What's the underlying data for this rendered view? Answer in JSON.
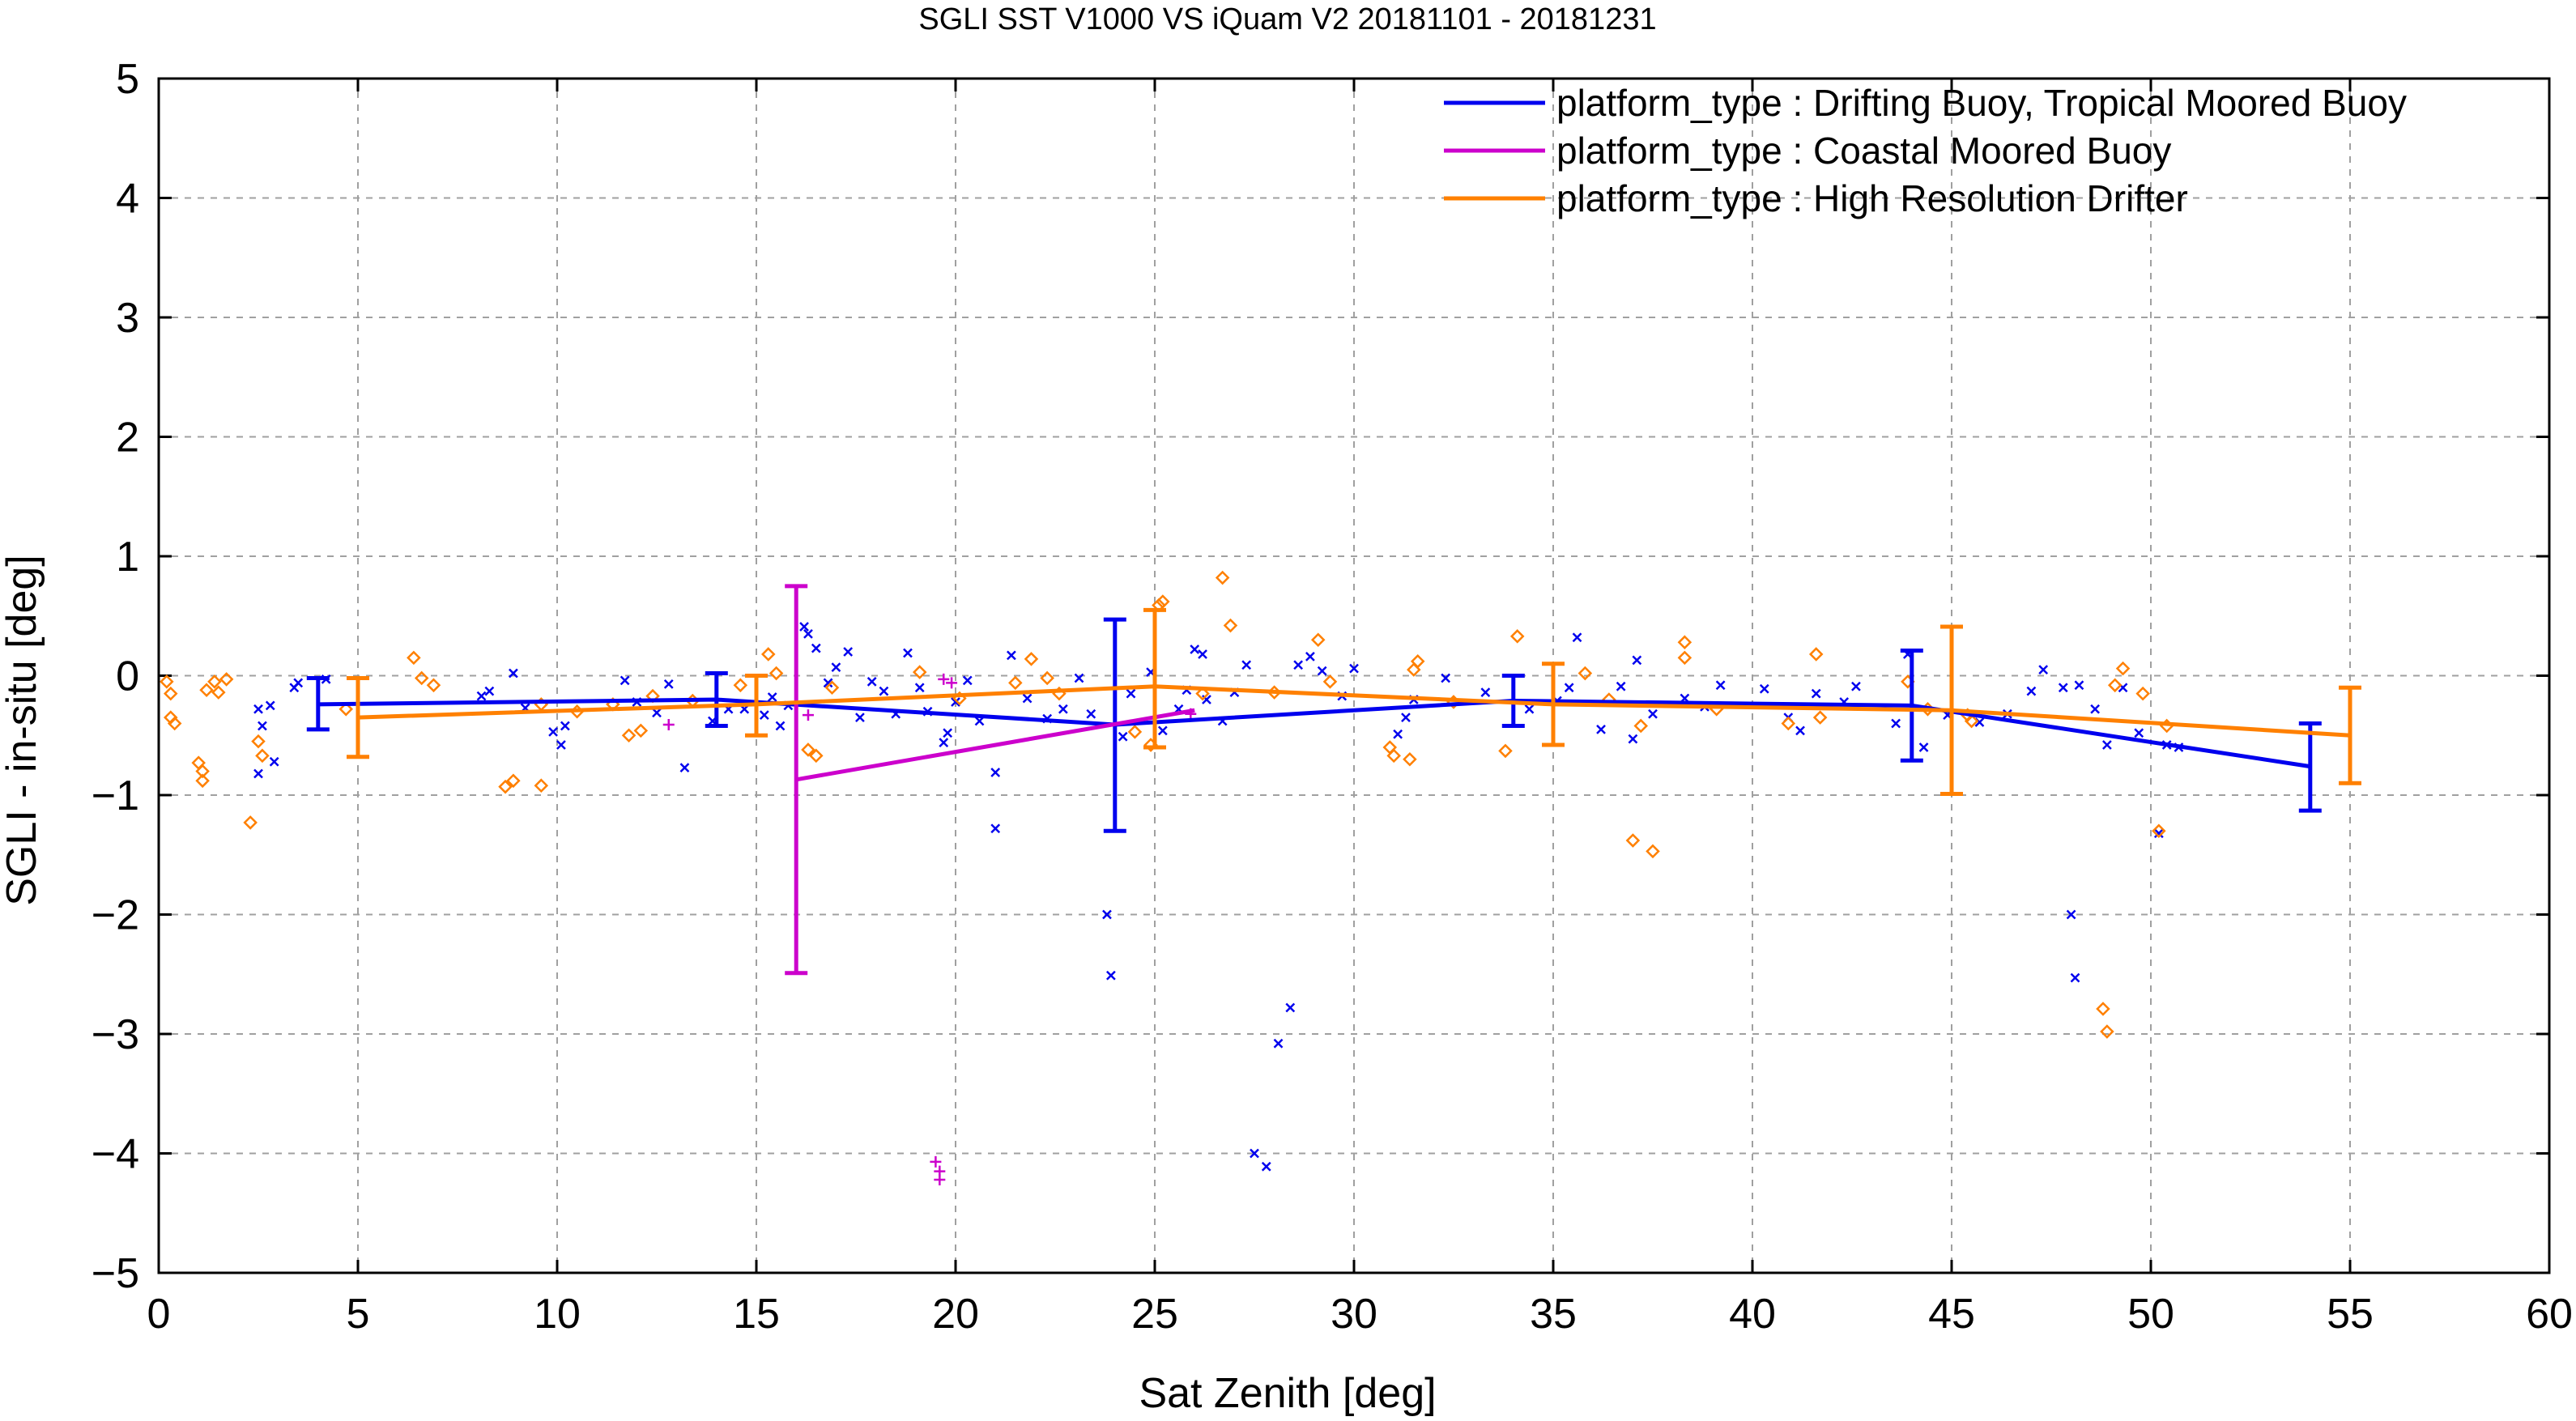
{
  "chart_data": {
    "type": "scatter",
    "title": "SGLI SST V1000 VS iQuam V2 20181101 - 20181231",
    "xlabel": "Sat Zenith [deg]",
    "ylabel": "SGLI - in-situ [deg]",
    "xlim": [
      0,
      60
    ],
    "ylim": [
      -5,
      5
    ],
    "xticks": [
      0,
      5,
      10,
      15,
      20,
      25,
      30,
      35,
      40,
      45,
      50,
      55,
      60
    ],
    "yticks": [
      -5,
      -4,
      -3,
      -2,
      -1,
      0,
      1,
      2,
      3,
      4,
      5
    ],
    "xtick_labels": [
      "0",
      "5",
      "10",
      "15",
      "20",
      "25",
      "30",
      "35",
      "40",
      "45",
      "50",
      "55",
      "60"
    ],
    "ytick_labels": [
      "−5",
      "−4",
      "−3",
      "−2",
      "−1",
      "0",
      "1",
      "2",
      "3",
      "4",
      "5"
    ],
    "grid": true,
    "grid_style": "dashed",
    "legend_position": "top-right",
    "series": [
      {
        "name": "platform_type : Drifting Buoy, Tropical Moored Buoy",
        "color": "#0000ee",
        "marker": "x",
        "mean_line": {
          "x": [
            4,
            14,
            24,
            34,
            44,
            54
          ],
          "y": [
            -0.24,
            -0.2,
            -0.41,
            -0.21,
            -0.25,
            -0.76
          ]
        },
        "error_bars": [
          {
            "x": 4,
            "low": -0.45,
            "high": -0.02
          },
          {
            "x": 14,
            "low": -0.42,
            "high": 0.02
          },
          {
            "x": 24,
            "low": -1.3,
            "high": 0.47
          },
          {
            "x": 34,
            "low": -0.42,
            "high": 0.0
          },
          {
            "x": 44,
            "low": -0.71,
            "high": 0.21
          },
          {
            "x": 54,
            "low": -1.13,
            "high": -0.4
          }
        ],
        "points": [
          [
            2.5,
            -0.28
          ],
          [
            2.6,
            -0.42
          ],
          [
            2.5,
            -0.82
          ],
          [
            2.9,
            -0.72
          ],
          [
            2.8,
            -0.25
          ],
          [
            3.4,
            -0.1
          ],
          [
            3.5,
            -0.06
          ],
          [
            4.2,
            -0.03
          ],
          [
            8.1,
            -0.17
          ],
          [
            8.3,
            -0.13
          ],
          [
            8.9,
            0.02
          ],
          [
            9.2,
            -0.27
          ],
          [
            9.9,
            -0.47
          ],
          [
            10.1,
            -0.58
          ],
          [
            10.2,
            -0.42
          ],
          [
            11.7,
            -0.04
          ],
          [
            12.0,
            -0.22
          ],
          [
            12.5,
            -0.31
          ],
          [
            12.8,
            -0.07
          ],
          [
            13.2,
            -0.77
          ],
          [
            13.9,
            -0.38
          ],
          [
            14.3,
            -0.28
          ],
          [
            14.7,
            -0.28
          ],
          [
            15.2,
            -0.33
          ],
          [
            15.4,
            -0.18
          ],
          [
            15.6,
            -0.42
          ],
          [
            15.8,
            -0.25
          ],
          [
            16.2,
            0.41
          ],
          [
            16.3,
            0.35
          ],
          [
            16.5,
            0.23
          ],
          [
            16.8,
            -0.06
          ],
          [
            17.0,
            0.07
          ],
          [
            17.3,
            0.2
          ],
          [
            17.6,
            -0.35
          ],
          [
            17.9,
            -0.05
          ],
          [
            18.2,
            -0.13
          ],
          [
            18.5,
            -0.32
          ],
          [
            18.8,
            0.19
          ],
          [
            19.1,
            -0.1
          ],
          [
            19.3,
            -0.3
          ],
          [
            19.7,
            -0.56
          ],
          [
            19.8,
            -0.48
          ],
          [
            20.0,
            -0.22
          ],
          [
            20.3,
            -0.04
          ],
          [
            20.6,
            -0.38
          ],
          [
            21.0,
            -1.28
          ],
          [
            21.0,
            -0.81
          ],
          [
            21.4,
            0.17
          ],
          [
            21.8,
            -0.19
          ],
          [
            22.3,
            -0.36
          ],
          [
            22.7,
            -0.28
          ],
          [
            23.1,
            -0.02
          ],
          [
            23.4,
            -0.32
          ],
          [
            23.8,
            -2.0
          ],
          [
            23.9,
            -2.51
          ],
          [
            24.2,
            -0.51
          ],
          [
            24.4,
            -0.15
          ],
          [
            24.9,
            0.03
          ],
          [
            25.2,
            -0.46
          ],
          [
            25.6,
            -0.28
          ],
          [
            25.8,
            -0.12
          ],
          [
            26.0,
            0.22
          ],
          [
            26.2,
            0.18
          ],
          [
            26.3,
            -0.2
          ],
          [
            26.7,
            -0.38
          ],
          [
            27.0,
            -0.14
          ],
          [
            27.3,
            0.09
          ],
          [
            27.5,
            -4.0
          ],
          [
            27.8,
            -4.11
          ],
          [
            28.1,
            -3.08
          ],
          [
            28.4,
            -2.78
          ],
          [
            28.6,
            0.09
          ],
          [
            28.9,
            0.16
          ],
          [
            29.2,
            0.04
          ],
          [
            29.7,
            -0.17
          ],
          [
            30.0,
            0.06
          ],
          [
            31.1,
            -0.49
          ],
          [
            31.3,
            -0.35
          ],
          [
            31.5,
            -0.2
          ],
          [
            32.3,
            -0.02
          ],
          [
            33.3,
            -0.14
          ],
          [
            34.4,
            -0.28
          ],
          [
            35.1,
            -0.21
          ],
          [
            35.4,
            -0.1
          ],
          [
            35.6,
            0.32
          ],
          [
            36.2,
            -0.45
          ],
          [
            36.7,
            -0.09
          ],
          [
            37.0,
            -0.53
          ],
          [
            37.1,
            0.13
          ],
          [
            37.5,
            -0.32
          ],
          [
            38.3,
            -0.19
          ],
          [
            38.8,
            -0.26
          ],
          [
            39.2,
            -0.08
          ],
          [
            40.3,
            -0.11
          ],
          [
            40.9,
            -0.35
          ],
          [
            41.2,
            -0.46
          ],
          [
            41.6,
            -0.15
          ],
          [
            42.3,
            -0.22
          ],
          [
            42.6,
            -0.09
          ],
          [
            43.6,
            -0.4
          ],
          [
            43.9,
            0.18
          ],
          [
            44.3,
            -0.6
          ],
          [
            44.9,
            -0.33
          ],
          [
            45.7,
            -0.39
          ],
          [
            46.4,
            -0.32
          ],
          [
            47.0,
            -0.13
          ],
          [
            47.3,
            0.05
          ],
          [
            47.8,
            -0.1
          ],
          [
            48.0,
            -2.0
          ],
          [
            48.1,
            -2.53
          ],
          [
            48.2,
            -0.08
          ],
          [
            48.6,
            -0.28
          ],
          [
            48.9,
            -0.58
          ],
          [
            49.3,
            -0.1
          ],
          [
            49.7,
            -0.48
          ],
          [
            50.2,
            -1.32
          ],
          [
            50.4,
            -0.58
          ],
          [
            50.7,
            -0.6
          ]
        ]
      },
      {
        "name": "platform_type : Coastal Moored Buoy",
        "color": "#cc00cc",
        "marker": "+",
        "mean_line": {
          "x": [
            16,
            26
          ],
          "y": [
            -0.87,
            -0.29
          ]
        },
        "error_bars": [
          {
            "x": 16,
            "low": -2.49,
            "high": 0.75
          }
        ],
        "points": [
          [
            12.8,
            -0.41
          ],
          [
            16.3,
            -0.33
          ],
          [
            19.5,
            -4.07
          ],
          [
            19.6,
            -4.22
          ],
          [
            19.6,
            -4.15
          ],
          [
            19.7,
            -0.03
          ],
          [
            19.9,
            -0.06
          ],
          [
            25.9,
            -0.32
          ]
        ]
      },
      {
        "name": "platform_type : High Resolution Drifter",
        "color": "#ff8000",
        "marker": "diamond",
        "mean_line": {
          "x": [
            5,
            15,
            25,
            35,
            45,
            55
          ],
          "y": [
            -0.35,
            -0.24,
            -0.09,
            -0.24,
            -0.29,
            -0.5
          ]
        },
        "error_bars": [
          {
            "x": 5,
            "low": -0.68,
            "high": -0.02
          },
          {
            "x": 15,
            "low": -0.5,
            "high": 0.0
          },
          {
            "x": 25,
            "low": -0.6,
            "high": 0.55
          },
          {
            "x": 35,
            "low": -0.58,
            "high": 0.1
          },
          {
            "x": 45,
            "low": -0.99,
            "high": 0.41
          },
          {
            "x": 55,
            "low": -0.9,
            "high": -0.1
          }
        ],
        "points": [
          [
            0.2,
            -0.05
          ],
          [
            0.3,
            -0.15
          ],
          [
            0.3,
            -0.35
          ],
          [
            0.4,
            -0.4
          ],
          [
            1.0,
            -0.73
          ],
          [
            1.1,
            -0.8
          ],
          [
            1.1,
            -0.88
          ],
          [
            1.2,
            -0.12
          ],
          [
            1.4,
            -0.05
          ],
          [
            1.5,
            -0.14
          ],
          [
            1.7,
            -0.03
          ],
          [
            2.3,
            -1.23
          ],
          [
            2.5,
            -0.55
          ],
          [
            2.6,
            -0.67
          ],
          [
            4.7,
            -0.28
          ],
          [
            6.4,
            0.15
          ],
          [
            6.6,
            -0.02
          ],
          [
            6.9,
            -0.08
          ],
          [
            8.7,
            -0.93
          ],
          [
            8.9,
            -0.88
          ],
          [
            9.6,
            -0.92
          ],
          [
            9.6,
            -0.24
          ],
          [
            10.5,
            -0.3
          ],
          [
            11.4,
            -0.24
          ],
          [
            11.8,
            -0.5
          ],
          [
            12.1,
            -0.46
          ],
          [
            12.4,
            -0.17
          ],
          [
            13.4,
            -0.21
          ],
          [
            14.6,
            -0.08
          ],
          [
            15.3,
            0.18
          ],
          [
            15.5,
            0.02
          ],
          [
            16.3,
            -0.62
          ],
          [
            16.5,
            -0.67
          ],
          [
            16.9,
            -0.1
          ],
          [
            19.1,
            0.03
          ],
          [
            20.1,
            -0.19
          ],
          [
            21.5,
            -0.06
          ],
          [
            21.9,
            0.14
          ],
          [
            22.3,
            -0.02
          ],
          [
            22.6,
            -0.15
          ],
          [
            24.5,
            -0.47
          ],
          [
            24.9,
            -0.58
          ],
          [
            25.1,
            0.59
          ],
          [
            25.2,
            0.62
          ],
          [
            26.2,
            -0.15
          ],
          [
            26.7,
            0.82
          ],
          [
            26.9,
            0.42
          ],
          [
            28.0,
            -0.14
          ],
          [
            29.1,
            0.3
          ],
          [
            29.4,
            -0.05
          ],
          [
            30.9,
            -0.6
          ],
          [
            31.0,
            -0.67
          ],
          [
            31.4,
            -0.7
          ],
          [
            31.5,
            0.05
          ],
          [
            31.6,
            0.12
          ],
          [
            32.5,
            -0.22
          ],
          [
            33.8,
            -0.63
          ],
          [
            34.1,
            0.33
          ],
          [
            35.8,
            0.02
          ],
          [
            36.4,
            -0.2
          ],
          [
            37.0,
            -1.38
          ],
          [
            37.2,
            -0.42
          ],
          [
            37.5,
            -1.47
          ],
          [
            38.3,
            0.28
          ],
          [
            38.3,
            0.15
          ],
          [
            39.1,
            -0.28
          ],
          [
            40.9,
            -0.4
          ],
          [
            41.6,
            0.18
          ],
          [
            41.7,
            -0.35
          ],
          [
            43.9,
            -0.05
          ],
          [
            44.4,
            -0.28
          ],
          [
            45.4,
            -0.33
          ],
          [
            45.5,
            -0.38
          ],
          [
            48.8,
            -2.79
          ],
          [
            48.9,
            -2.98
          ],
          [
            49.1,
            -0.08
          ],
          [
            49.3,
            0.06
          ],
          [
            49.8,
            -0.15
          ],
          [
            50.2,
            -1.3
          ],
          [
            50.4,
            -0.42
          ]
        ]
      }
    ]
  }
}
